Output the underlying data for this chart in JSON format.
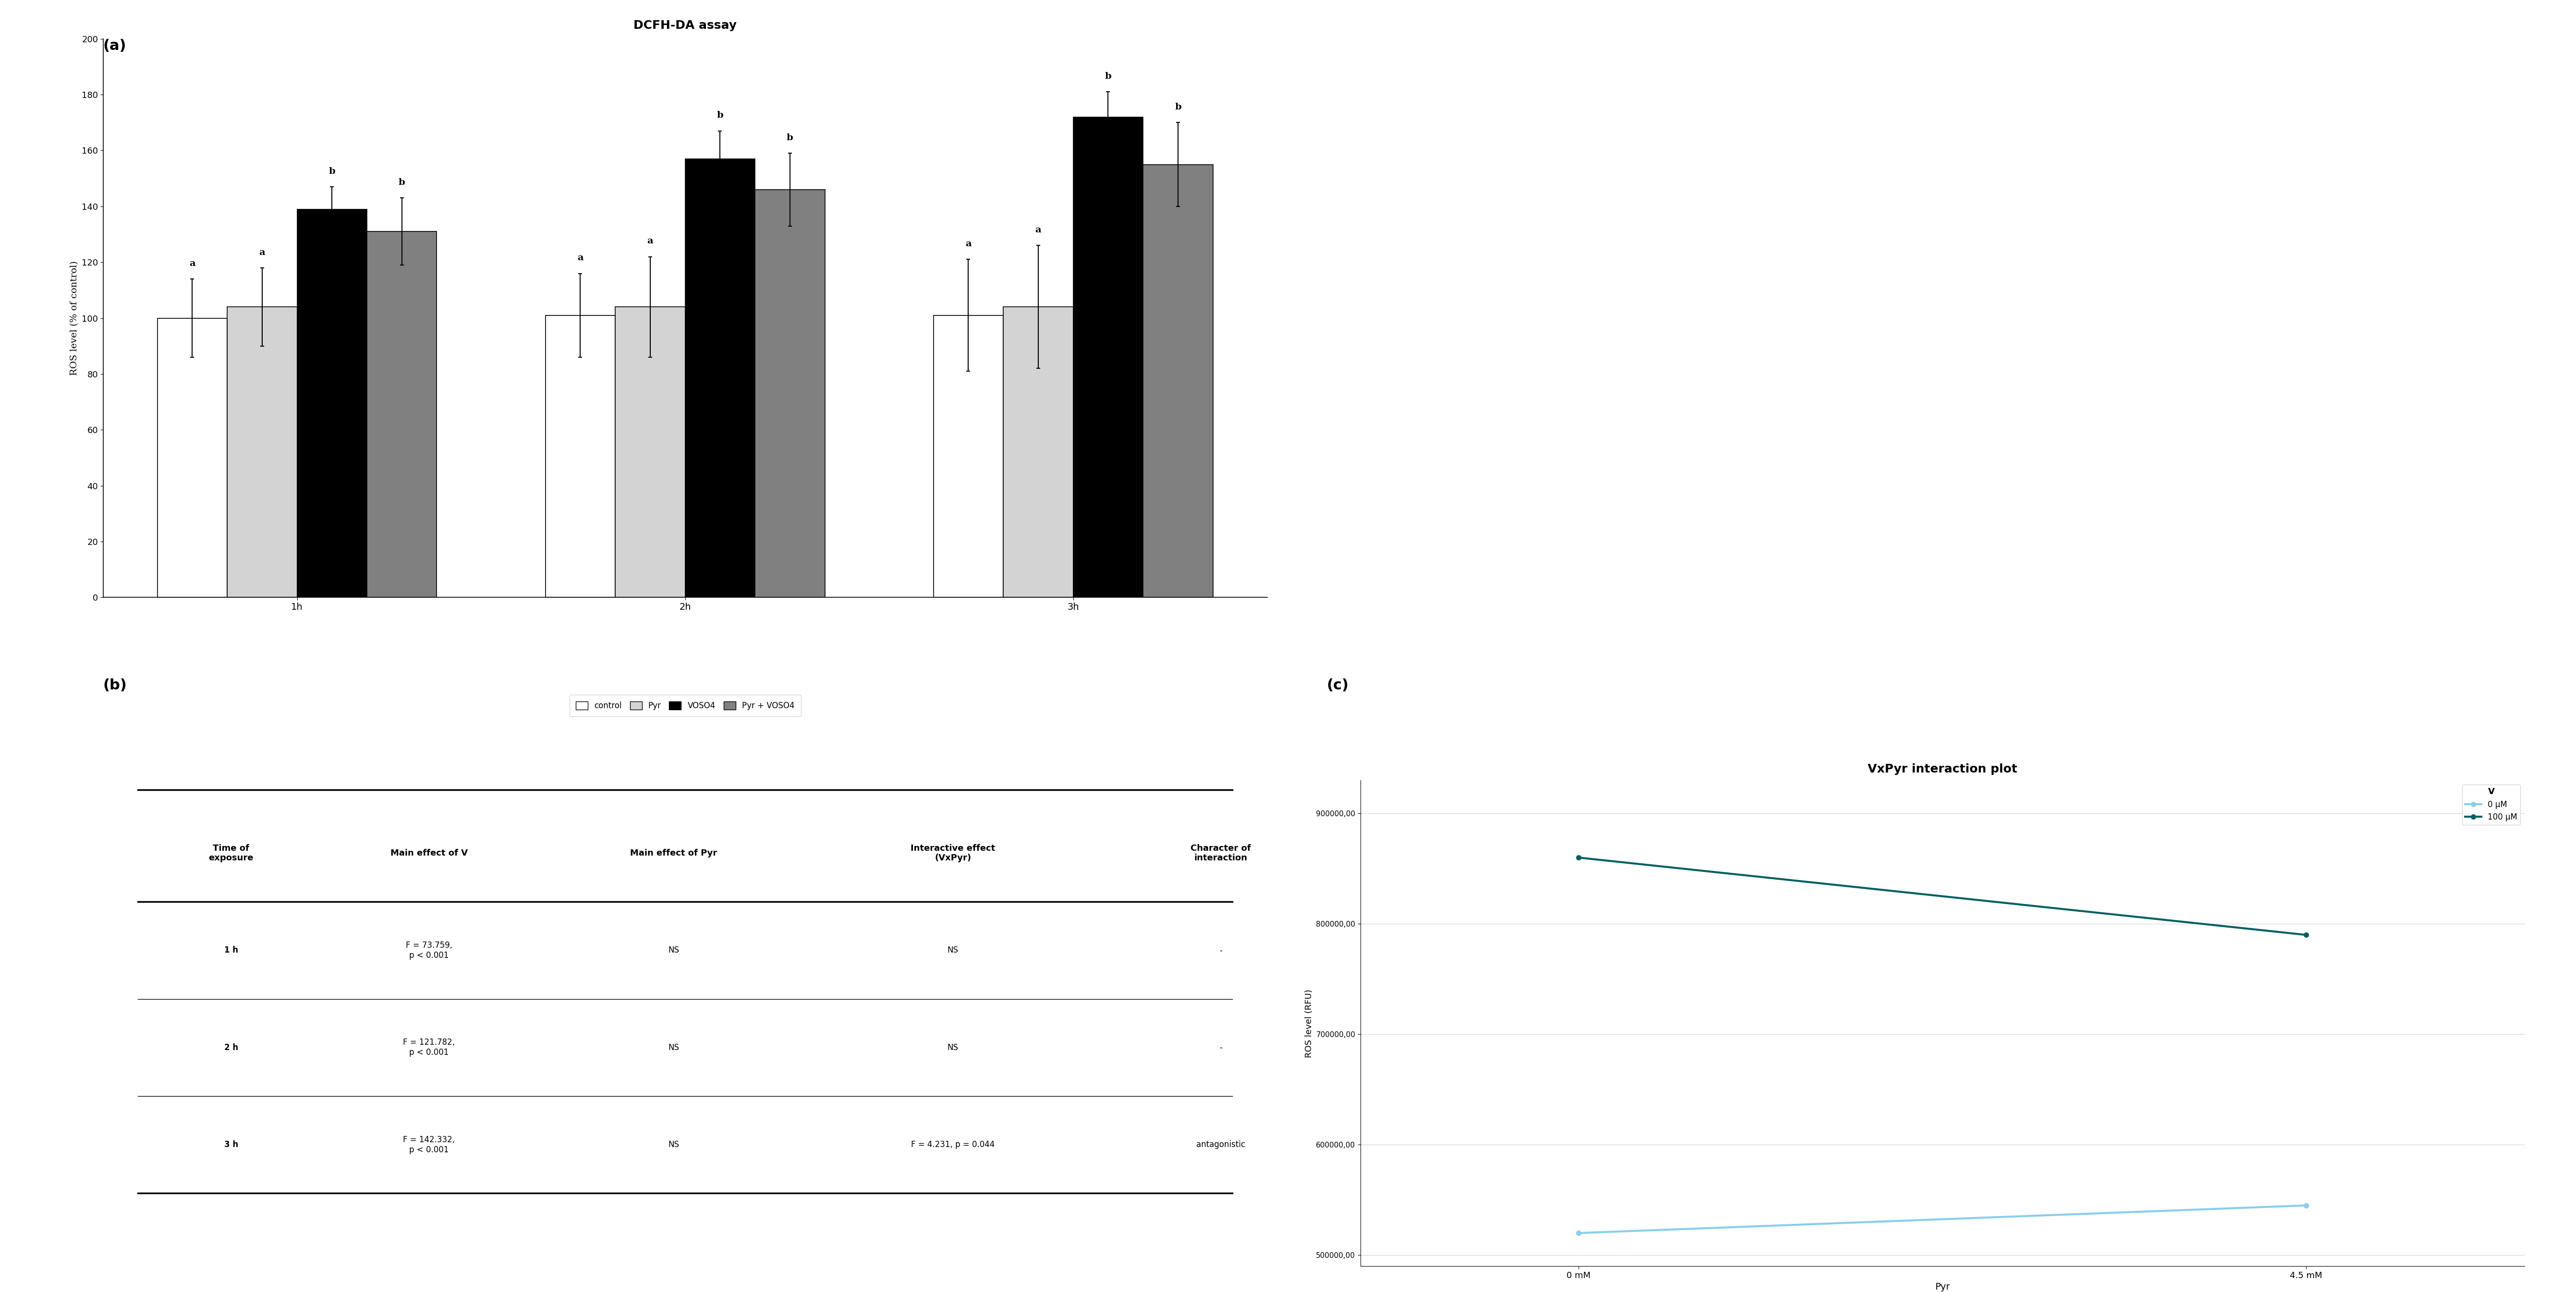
{
  "bar_title": "DCFH-DA assay",
  "bar_ylabel": "ROS level (% of control)",
  "bar_groups": [
    "1h",
    "2h",
    "3h"
  ],
  "bar_series": [
    "control",
    "Pyr",
    "VOSO4",
    "Pyr + VOSO4"
  ],
  "bar_values": [
    [
      100,
      104,
      139,
      131
    ],
    [
      101,
      104,
      157,
      146
    ],
    [
      101,
      104,
      172,
      155
    ]
  ],
  "bar_errors": [
    [
      14,
      14,
      8,
      12
    ],
    [
      15,
      18,
      10,
      13
    ],
    [
      20,
      22,
      9,
      15
    ]
  ],
  "bar_colors": [
    "#ffffff",
    "#d3d3d3",
    "#000000",
    "#808080"
  ],
  "bar_edge_color": "#000000",
  "bar_ylim": [
    0,
    200
  ],
  "bar_yticks": [
    0,
    20,
    40,
    60,
    80,
    100,
    120,
    140,
    160,
    180,
    200
  ],
  "bar_letters": [
    [
      "a",
      "a",
      "b",
      "b"
    ],
    [
      "a",
      "a",
      "b",
      "b"
    ],
    [
      "a",
      "a",
      "b",
      "b"
    ]
  ],
  "legend_labels": [
    "control",
    "Pyr",
    "VOSO4",
    "Pyr + VOSO4"
  ],
  "table_col_labels": [
    "Time of\nexposure",
    "Main effect of V",
    "Main effect of Pyr",
    "Interactive effect\n(VxPyr)",
    "Character of\ninteraction"
  ],
  "table_row_data": [
    [
      "1 h",
      "F = 73.759,\np < 0.001",
      "NS",
      "NS",
      "-"
    ],
    [
      "2 h",
      "F = 121.782,\np < 0.001",
      "NS",
      "NS",
      "-"
    ],
    [
      "3 h",
      "F = 142.332,\np < 0.001",
      "NS",
      "F = 4.231, p = 0.044",
      "antagonistic"
    ]
  ],
  "interact_title": "VxPyr interaction plot",
  "interact_xlabel": "Pyr",
  "interact_ylabel": "ROS level (RFU)",
  "interact_xticks": [
    "0 mM",
    "4.5 mM"
  ],
  "interact_legend_title": "V",
  "interact_lines": [
    {
      "label": "0 μM",
      "color": "#87CEEB",
      "values": [
        520000,
        545000
      ],
      "linestyle": "-"
    },
    {
      "label": "100 μM",
      "color": "#006060",
      "values": [
        860000,
        790000
      ],
      "linestyle": "-"
    }
  ],
  "interact_ylim": [
    490000,
    930000
  ],
  "interact_yticks": [
    500000,
    600000,
    700000,
    800000,
    900000
  ],
  "interact_yticklabels": [
    "500000,00",
    "600000,00",
    "700000,00",
    "800000,00",
    "900000,00"
  ],
  "panel_a_label": "(a)",
  "panel_b_label": "(b)",
  "panel_c_label": "(c)"
}
